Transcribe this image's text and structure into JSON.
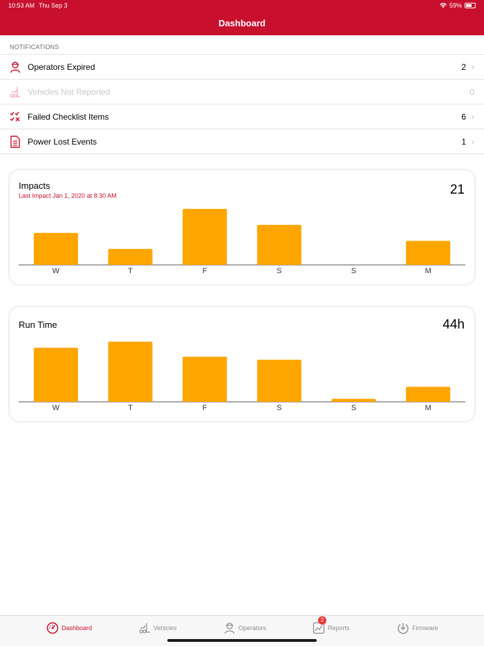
{
  "status_bar": {
    "time": "10:53 AM",
    "date": "Thu Sep 3",
    "battery": "59%"
  },
  "nav": {
    "title": "Dashboard"
  },
  "notifications": {
    "section_label": "NOTIFICATIONS",
    "items": [
      {
        "label": "Operators Expired",
        "count": "2",
        "icon": "operator-icon",
        "enabled": true
      },
      {
        "label": "Vehicles Not Reported",
        "count": "0",
        "icon": "forklift-icon",
        "enabled": false
      },
      {
        "label": "Failed Checklist Items",
        "count": "6",
        "icon": "checklist-fail-icon",
        "enabled": true
      },
      {
        "label": "Power Lost Events",
        "count": "1",
        "icon": "document-icon",
        "enabled": true
      }
    ]
  },
  "impacts": {
    "title": "Impacts",
    "subtitle": "Last Impact Jan 1, 2020 at 8:30 AM",
    "total": "21"
  },
  "runtime": {
    "title": "Run Time",
    "total": "44h"
  },
  "chart_data": [
    {
      "type": "bar",
      "title": "Impacts",
      "categories": [
        "W",
        "T",
        "F",
        "S",
        "S",
        "M"
      ],
      "values": [
        4,
        2,
        7,
        5,
        0,
        3
      ],
      "ylim": [
        0,
        7
      ],
      "color": "#ffa500"
    },
    {
      "type": "bar",
      "title": "Run Time",
      "categories": [
        "W",
        "T",
        "F",
        "S",
        "S",
        "M"
      ],
      "values": [
        9,
        10,
        7.5,
        7,
        0.5,
        2.5
      ],
      "ylim": [
        0,
        10
      ],
      "color": "#ffa500"
    }
  ],
  "tabs": [
    {
      "label": "Dashboard",
      "icon": "speedometer-icon",
      "active": true
    },
    {
      "label": "Vehicles",
      "icon": "forklift-icon",
      "active": false
    },
    {
      "label": "Operators",
      "icon": "operator-icon",
      "active": false
    },
    {
      "label": "Reports",
      "icon": "reports-icon",
      "active": false,
      "badge": "2"
    },
    {
      "label": "Firmware",
      "icon": "firmware-icon",
      "active": false
    }
  ],
  "colors": {
    "brand": "#c8102e",
    "bar": "#ffa500"
  }
}
